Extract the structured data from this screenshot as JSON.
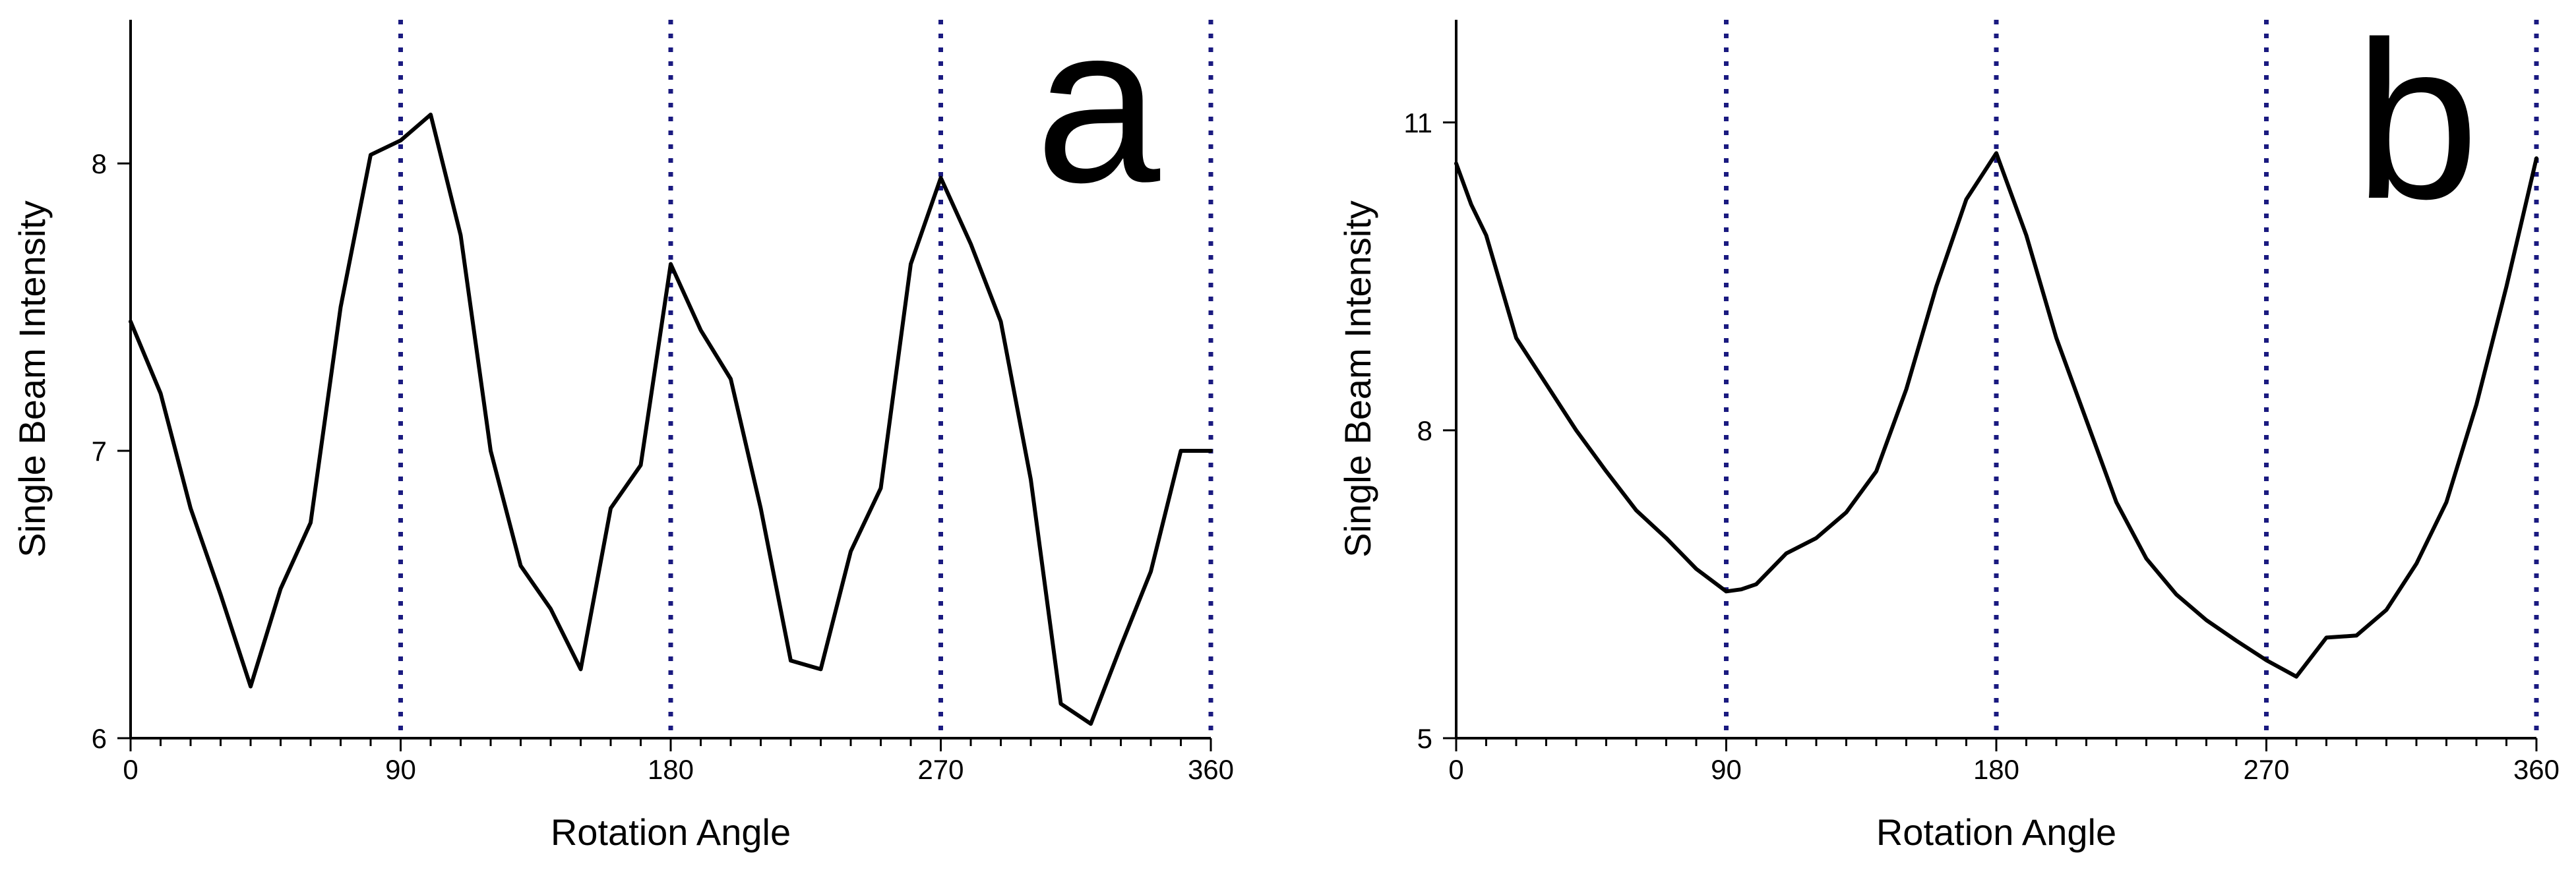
{
  "colors": {
    "line": "#000000",
    "reference_lines": "#1a1a80",
    "axes": "#000000"
  },
  "chart_data": [
    {
      "panel_label": "a",
      "type": "line",
      "xlabel": "Rotation Angle",
      "ylabel": "Single Beam Intensity",
      "xlim": [
        0,
        360
      ],
      "ylim": [
        6,
        8.5
      ],
      "xticks": [
        0,
        90,
        180,
        270,
        360
      ],
      "xtick_labels": [
        "0",
        "90",
        "180",
        "270",
        "360"
      ],
      "yticks": [
        6,
        7,
        8
      ],
      "ytick_labels": [
        "6",
        "7",
        "8"
      ],
      "minor_xtick_step": 10,
      "reference_lines_x": [
        90,
        180,
        270,
        360
      ],
      "grid": false,
      "legend": "none",
      "series": [
        {
          "x": [
            0,
            10,
            20,
            30,
            40,
            50,
            60,
            70,
            80,
            90,
            100,
            110,
            120,
            130,
            140,
            150,
            160,
            170,
            180,
            190,
            200,
            210,
            220,
            230,
            240,
            250,
            260,
            270,
            280,
            290,
            300,
            310,
            320,
            330,
            340,
            350,
            360
          ],
          "values": [
            7.45,
            7.2,
            6.8,
            6.5,
            6.18,
            6.52,
            6.75,
            7.5,
            8.03,
            8.08,
            8.17,
            7.75,
            7.0,
            6.6,
            6.45,
            6.24,
            6.8,
            6.95,
            7.65,
            7.42,
            7.25,
            6.8,
            6.27,
            6.24,
            6.65,
            6.87,
            7.65,
            7.95,
            7.72,
            7.45,
            6.9,
            6.12,
            6.05,
            6.32,
            6.58,
            7.0,
            7.0
          ]
        }
      ]
    },
    {
      "panel_label": "b",
      "type": "line",
      "xlabel": "Rotation Angle",
      "ylabel": "Single Beam Intensity",
      "xlim": [
        0,
        360
      ],
      "ylim": [
        5,
        12
      ],
      "xticks": [
        0,
        90,
        180,
        270,
        360
      ],
      "xtick_labels": [
        "0",
        "90",
        "180",
        "270",
        "360"
      ],
      "yticks": [
        5,
        8,
        11
      ],
      "ytick_labels": [
        "5",
        "8",
        "11"
      ],
      "minor_xtick_step": 10,
      "reference_lines_x": [
        90,
        180,
        270,
        360
      ],
      "grid": false,
      "legend": "none",
      "series": [
        {
          "x": [
            0,
            5,
            10,
            20,
            30,
            40,
            50,
            60,
            70,
            80,
            90,
            95,
            100,
            110,
            120,
            130,
            140,
            150,
            160,
            170,
            180,
            190,
            200,
            210,
            220,
            230,
            240,
            250,
            260,
            270,
            280,
            290,
            300,
            310,
            320,
            330,
            340,
            350,
            360
          ],
          "values": [
            10.6,
            10.2,
            9.9,
            8.9,
            8.45,
            8.0,
            7.6,
            7.22,
            6.95,
            6.65,
            6.43,
            6.45,
            6.5,
            6.8,
            6.95,
            7.2,
            7.6,
            8.4,
            9.4,
            10.25,
            10.7,
            9.9,
            8.9,
            8.1,
            7.3,
            6.75,
            6.4,
            6.15,
            5.95,
            5.76,
            5.6,
            5.98,
            6.0,
            6.25,
            6.7,
            7.3,
            8.25,
            9.4,
            10.65
          ]
        }
      ]
    }
  ]
}
